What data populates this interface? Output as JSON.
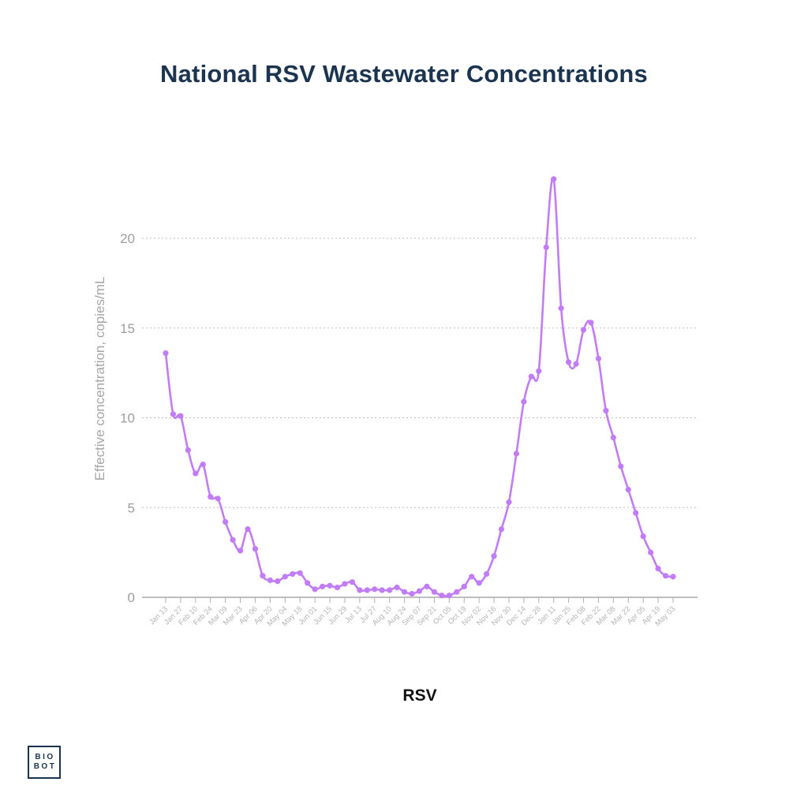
{
  "title": "National RSV Wastewater Concentrations",
  "series_label": "RSV",
  "logo": {
    "line1": "BIO",
    "line2": "BOT"
  },
  "colors": {
    "line": "#c27cf7",
    "title": "#1b3450",
    "grid": "#bdbdbd",
    "axis_text": "#9e9e9e"
  },
  "chart_data": {
    "type": "line",
    "title": "National RSV Wastewater Concentrations",
    "xlabel": "RSV",
    "ylabel": "Effective concentration, copies/mL",
    "ylim": [
      0,
      25
    ],
    "yticks": [
      0,
      5,
      10,
      15,
      20
    ],
    "grid": true,
    "xtick_labels": [
      "Jan 13",
      "Jan 27",
      "Feb 10",
      "Feb 24",
      "Mar 09",
      "Mar 23",
      "Apr 06",
      "Apr 20",
      "May 04",
      "May 18",
      "Jun 01",
      "Jun 15",
      "Jun 29",
      "Jul 13",
      "Jul 27",
      "Aug 10",
      "Aug 24",
      "Sep 07",
      "Sep 21",
      "Oct 05",
      "Oct 19",
      "Nov 02",
      "Nov 16",
      "Nov 30",
      "Dec 14",
      "Dec 28",
      "Jan 11",
      "Jan 25",
      "Feb 08",
      "Feb 22",
      "Mar 08",
      "Mar 22",
      "Apr 05",
      "Apr 19",
      "May 03"
    ],
    "series": [
      {
        "values": [
          13.6,
          10.2,
          10.1,
          8.2,
          6.9,
          7.4,
          5.6,
          5.5,
          4.2,
          3.2,
          2.6,
          3.8,
          2.7,
          1.2,
          0.95,
          0.9,
          1.15,
          1.3,
          1.35,
          0.8,
          0.45,
          0.6,
          0.65,
          0.55,
          0.75,
          0.85,
          0.4,
          0.4,
          0.45,
          0.4,
          0.4,
          0.55,
          0.3,
          0.2,
          0.35,
          0.6,
          0.3,
          0.1,
          0.1,
          0.3,
          0.6,
          1.15,
          0.8,
          1.3,
          2.3,
          3.8,
          5.3,
          8.0,
          10.9,
          12.3,
          12.6,
          19.5,
          23.3,
          16.1,
          13.1,
          13.0,
          14.9,
          15.3,
          13.3,
          10.4,
          8.9,
          7.3,
          6.0,
          4.7,
          3.4,
          2.5,
          1.6,
          1.2,
          1.15
        ]
      }
    ]
  }
}
